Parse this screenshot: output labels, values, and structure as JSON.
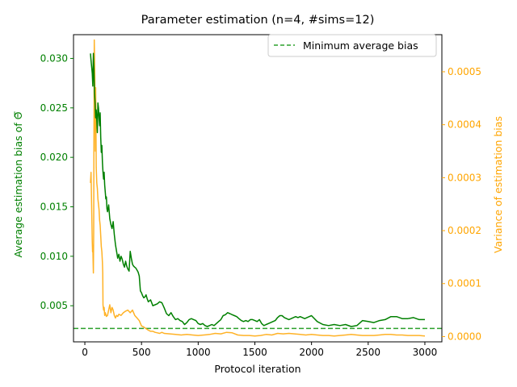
{
  "chart_data": {
    "type": "line",
    "title": "Parameter estimation (n=4, #sims=12)",
    "xlabel": "Protocol iteration",
    "ylabel_left": "Average estimation bias of Θ̅",
    "ylabel_right": "Variance of estimation bias",
    "xlim": [
      -100,
      3150
    ],
    "ylim_left": [
      0.00135,
      0.0324
    ],
    "ylim_right": [
      -1e-05,
      0.00057
    ],
    "x_ticks": [
      0,
      500,
      1000,
      1500,
      2000,
      2500,
      3000
    ],
    "y_ticks_left": [
      0.005,
      0.01,
      0.015,
      0.02,
      0.025,
      0.03
    ],
    "y_ticks_right": [
      0.0,
      0.0001,
      0.0002,
      0.0003,
      0.0004,
      0.0005
    ],
    "grid": false,
    "legend": {
      "position": "top-right",
      "entries": [
        "Minimum average bias"
      ]
    },
    "colors": {
      "left_axis": "#008000",
      "right_axis": "#FFA500",
      "bias_line": "#008000",
      "variance_line": "#FFA500",
      "min_line": "#2ca02c"
    },
    "reference_line": {
      "name": "Minimum average bias",
      "y": 0.0027,
      "style": "dashed"
    },
    "series": [
      {
        "axis": "left",
        "x": [
          50,
          55,
          60,
          65,
          70,
          75,
          80,
          85,
          90,
          95,
          100,
          105,
          110,
          115,
          120,
          125,
          130,
          135,
          140,
          145,
          150,
          155,
          160,
          165,
          170,
          175,
          180,
          185,
          190,
          195,
          200,
          210,
          220,
          230,
          240,
          250,
          260,
          270,
          280,
          290,
          300,
          310,
          320,
          330,
          340,
          350,
          360,
          370,
          380,
          390,
          400,
          410,
          420,
          430,
          440,
          450,
          460,
          470,
          480,
          490,
          500,
          510,
          520,
          530,
          540,
          550,
          560,
          570,
          580,
          600,
          620,
          640,
          660,
          680,
          700,
          720,
          740,
          760,
          780,
          800,
          820,
          840,
          860,
          880,
          900,
          920,
          940,
          960,
          980,
          1000,
          1020,
          1040,
          1060,
          1080,
          1100,
          1120,
          1140,
          1160,
          1180,
          1200,
          1220,
          1240,
          1260,
          1280,
          1300,
          1320,
          1340,
          1360,
          1380,
          1400,
          1420,
          1440,
          1460,
          1480,
          1500,
          1520,
          1540,
          1560,
          1580,
          1600,
          1620,
          1640,
          1660,
          1680,
          1700,
          1720,
          1740,
          1760,
          1780,
          1800,
          1820,
          1840,
          1860,
          1880,
          1900,
          1920,
          1940,
          1960,
          1980,
          2000,
          2050,
          2100,
          2150,
          2200,
          2250,
          2300,
          2350,
          2400,
          2450,
          2500,
          2550,
          2600,
          2650,
          2700,
          2750,
          2800,
          2850,
          2900,
          2950,
          3000
        ],
        "y": [
          0.0305,
          0.0298,
          0.0292,
          0.0285,
          0.0272,
          0.0305,
          0.0288,
          0.0265,
          0.0255,
          0.024,
          0.0248,
          0.0238,
          0.0225,
          0.0255,
          0.025,
          0.024,
          0.0232,
          0.0245,
          0.022,
          0.0205,
          0.0212,
          0.0195,
          0.0185,
          0.0178,
          0.0185,
          0.0172,
          0.0165,
          0.0158,
          0.016,
          0.0148,
          0.0145,
          0.0152,
          0.0138,
          0.0132,
          0.0128,
          0.0135,
          0.0122,
          0.0112,
          0.0105,
          0.0098,
          0.0102,
          0.0095,
          0.01,
          0.0097,
          0.0092,
          0.0089,
          0.0095,
          0.009,
          0.0087,
          0.0085,
          0.0105,
          0.0098,
          0.0092,
          0.009,
          0.0089,
          0.0088,
          0.0086,
          0.0084,
          0.008,
          0.0065,
          0.0063,
          0.006,
          0.0058,
          0.0059,
          0.0061,
          0.0057,
          0.0054,
          0.0055,
          0.0056,
          0.005,
          0.0051,
          0.0052,
          0.0054,
          0.0053,
          0.0048,
          0.0042,
          0.004,
          0.0043,
          0.0039,
          0.0036,
          0.0037,
          0.0035,
          0.0034,
          0.0031,
          0.0033,
          0.0036,
          0.0037,
          0.0036,
          0.0035,
          0.0032,
          0.0031,
          0.0032,
          0.003,
          0.0029,
          0.003,
          0.0031,
          0.003,
          0.0032,
          0.0034,
          0.0036,
          0.004,
          0.0041,
          0.0043,
          0.0042,
          0.0041,
          0.004,
          0.0039,
          0.0037,
          0.0035,
          0.0034,
          0.0035,
          0.0034,
          0.0036,
          0.0036,
          0.0035,
          0.0034,
          0.0036,
          0.0032,
          0.003,
          0.0031,
          0.0032,
          0.0033,
          0.0034,
          0.0035,
          0.0038,
          0.004,
          0.004,
          0.0038,
          0.0037,
          0.0036,
          0.0037,
          0.0038,
          0.0039,
          0.0038,
          0.0039,
          0.0038,
          0.0037,
          0.0038,
          0.0039,
          0.004,
          0.0034,
          0.0031,
          0.003,
          0.0031,
          0.003,
          0.0031,
          0.0029,
          0.003,
          0.0035,
          0.0034,
          0.0033,
          0.0035,
          0.0036,
          0.0039,
          0.0039,
          0.0037,
          0.0037,
          0.0038,
          0.0036,
          0.0036
        ]
      },
      {
        "axis": "right",
        "x": [
          50,
          55,
          60,
          65,
          68,
          70,
          73,
          75,
          78,
          80,
          83,
          85,
          88,
          90,
          93,
          95,
          98,
          100,
          105,
          110,
          115,
          120,
          125,
          130,
          135,
          140,
          145,
          150,
          155,
          158,
          160,
          165,
          170,
          175,
          180,
          190,
          200,
          210,
          220,
          230,
          240,
          250,
          260,
          270,
          280,
          290,
          300,
          320,
          340,
          360,
          380,
          400,
          420,
          440,
          460,
          480,
          500,
          520,
          540,
          560,
          580,
          600,
          620,
          640,
          660,
          680,
          700,
          750,
          800,
          850,
          900,
          950,
          1000,
          1050,
          1100,
          1150,
          1200,
          1250,
          1300,
          1350,
          1400,
          1450,
          1500,
          1550,
          1600,
          1650,
          1700,
          1750,
          1800,
          1850,
          1900,
          1950,
          2000,
          2050,
          2100,
          2150,
          2200,
          2250,
          2300,
          2350,
          2400,
          2450,
          2500,
          2550,
          2600,
          2650,
          2700,
          2750,
          2800,
          2850,
          2900,
          2950,
          3000
        ],
        "y": [
          0.00029,
          0.00031,
          0.00025,
          0.00018,
          0.00016,
          0.00017,
          0.00014,
          0.00012,
          0.0002,
          0.00038,
          0.00056,
          0.00053,
          0.00049,
          0.00041,
          0.00035,
          0.00047,
          0.00039,
          0.00032,
          0.00029,
          0.00028,
          0.00026,
          0.00025,
          0.00024,
          0.00022,
          0.00021,
          0.00019,
          0.00017,
          0.00016,
          0.00014,
          0.00012,
          6e-05,
          5e-05,
          5.5e-05,
          4e-05,
          4.5e-05,
          3.8e-05,
          4e-05,
          5e-05,
          6e-05,
          4.5e-05,
          5.5e-05,
          5e-05,
          4e-05,
          3.5e-05,
          4e-05,
          3.8e-05,
          4.2e-05,
          4e-05,
          4.5e-05,
          4.8e-05,
          5e-05,
          4.5e-05,
          5e-05,
          4e-05,
          3.5e-05,
          3e-05,
          2e-05,
          1.8e-05,
          1.5e-05,
          1.2e-05,
          1e-05,
          1e-05,
          8e-06,
          7e-06,
          6e-06,
          8e-06,
          6e-06,
          5e-06,
          4e-06,
          3e-06,
          4e-06,
          3e-06,
          2e-06,
          3e-06,
          4e-06,
          6e-06,
          5e-06,
          8e-06,
          7e-06,
          3e-06,
          2e-06,
          2e-06,
          1e-06,
          2e-06,
          4e-06,
          3e-06,
          6e-06,
          5e-06,
          6e-06,
          5e-06,
          4e-06,
          3e-06,
          4e-06,
          3e-06,
          2e-06,
          2e-06,
          1e-06,
          2e-06,
          3e-06,
          4e-06,
          3e-06,
          2e-06,
          2e-06,
          2e-06,
          3e-06,
          4e-06,
          4e-06,
          3e-06,
          3e-06,
          2e-06,
          2e-06,
          2e-06,
          1e-06
        ]
      }
    ]
  }
}
